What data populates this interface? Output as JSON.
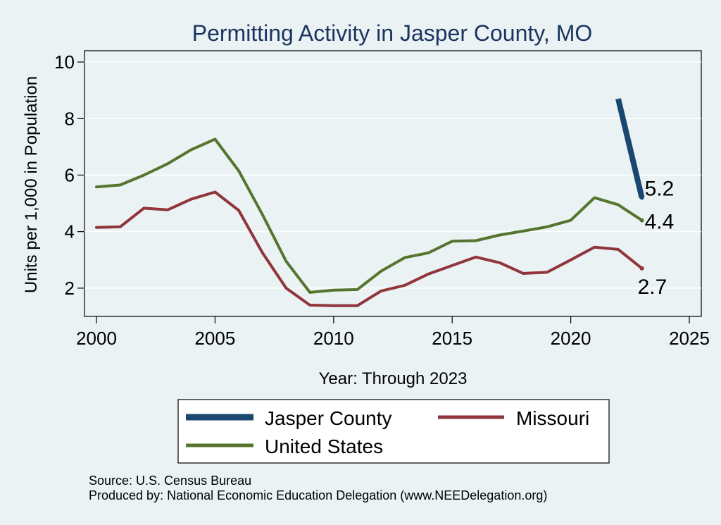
{
  "chart_data": {
    "type": "line",
    "title": "Permitting Activity in Jasper County, MO",
    "xlabel": "Year: Through 2023",
    "ylabel": "Units per 1,000 in Population",
    "xlim": [
      2000,
      2025
    ],
    "ylim": [
      1,
      10.4
    ],
    "x_ticks": [
      "2000",
      "2005",
      "2010",
      "2015",
      "2020",
      "2025"
    ],
    "y_ticks": [
      "2",
      "4",
      "6",
      "8",
      "10"
    ],
    "grid": true,
    "legend_placement": "bottom",
    "series": [
      {
        "name": "Jasper County",
        "color": "#1a476f",
        "x": [
          2022,
          2023
        ],
        "values": [
          8.7,
          5.2
        ],
        "end_label": "5.2"
      },
      {
        "name": "Missouri",
        "color": "#90353b",
        "x": [
          2000,
          2001,
          2002,
          2003,
          2004,
          2005,
          2006,
          2007,
          2008,
          2009,
          2010,
          2011,
          2012,
          2013,
          2014,
          2015,
          2016,
          2017,
          2018,
          2019,
          2020,
          2021,
          2022,
          2023
        ],
        "values": [
          4.15,
          4.17,
          4.83,
          4.77,
          5.15,
          5.4,
          4.75,
          3.25,
          2.0,
          1.4,
          1.38,
          1.38,
          1.9,
          2.1,
          2.5,
          2.8,
          3.1,
          2.9,
          2.52,
          2.56,
          3.0,
          3.45,
          3.37,
          2.7
        ],
        "end_label": "2.7"
      },
      {
        "name": "United States",
        "color": "#55752f",
        "x": [
          2000,
          2001,
          2002,
          2003,
          2004,
          2005,
          2006,
          2007,
          2008,
          2009,
          2010,
          2011,
          2012,
          2013,
          2014,
          2015,
          2016,
          2017,
          2018,
          2019,
          2020,
          2021,
          2022,
          2023
        ],
        "values": [
          5.58,
          5.65,
          6.0,
          6.4,
          6.9,
          7.27,
          6.15,
          4.6,
          2.95,
          1.85,
          1.93,
          1.95,
          2.6,
          3.08,
          3.25,
          3.66,
          3.68,
          3.88,
          4.02,
          4.17,
          4.4,
          5.2,
          4.95,
          4.4
        ],
        "end_label": "4.4"
      }
    ]
  },
  "footer": {
    "source": "Source: U.S. Census Bureau",
    "produced_by": "Produced by: National Economic Education Delegation (www.NEEDelegation.org)"
  }
}
